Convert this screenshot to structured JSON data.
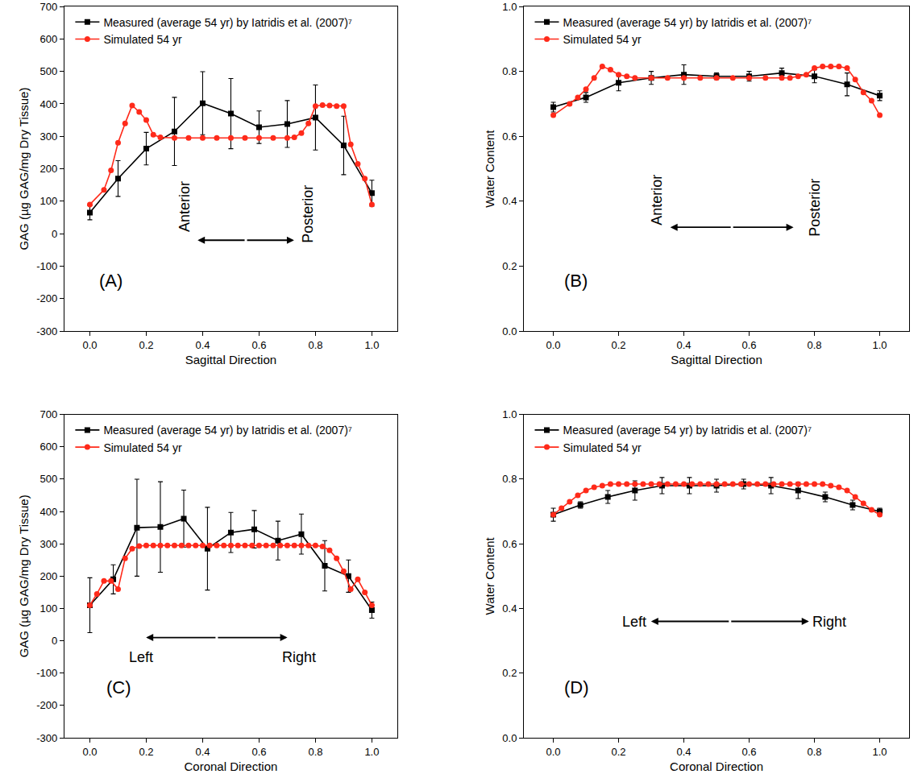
{
  "chart_data": [
    {
      "type": "line",
      "x_label": "Sagittal Direction",
      "y_label": "GAG (µg GAG/mg Dry Tissue)",
      "xlim": [
        -0.09,
        1.09
      ],
      "ylim": [
        -300,
        700
      ],
      "xticks": [
        {
          "value": 0,
          "label": "0.0"
        },
        {
          "value": 0.2,
          "label": "0.2"
        },
        {
          "value": 0.4,
          "label": "0.4"
        },
        {
          "value": 0.6,
          "label": "0.6"
        },
        {
          "value": 0.8,
          "label": "0.8"
        },
        {
          "value": 1,
          "label": "1.0"
        }
      ],
      "yticks": [
        -300,
        -200,
        -100,
        0,
        100,
        200,
        300,
        400,
        500,
        600,
        700
      ],
      "legend": "top left",
      "annotations": [
        "(A)",
        "Anterior",
        "Posterior"
      ],
      "series": [
        {
          "name": "Measured (average 54 yr) by Iatridis et al. (2007)⁷",
          "color": "#000000",
          "marker": "square",
          "line_style": "solid",
          "x": [
            0,
            0.1,
            0.2,
            0.3,
            0.4,
            0.5,
            0.6,
            0.7,
            0.8,
            0.9,
            1.0
          ],
          "values": [
            65,
            170,
            262,
            315,
            402,
            370,
            328,
            338,
            358,
            272,
            125
          ],
          "errors": [
            22,
            55,
            50,
            105,
            97,
            108,
            50,
            72,
            100,
            90,
            40
          ]
        },
        {
          "name": "Simulated 54 yr",
          "color": "#ff2a1a",
          "marker": "circle",
          "line_style": "solid",
          "x": [
            0,
            0.05,
            0.075,
            0.1,
            0.125,
            0.15,
            0.175,
            0.2,
            0.225,
            0.25,
            0.3,
            0.35,
            0.4,
            0.45,
            0.5,
            0.55,
            0.6,
            0.65,
            0.7,
            0.725,
            0.75,
            0.775,
            0.8,
            0.825,
            0.85,
            0.875,
            0.9,
            0.925,
            0.95,
            0.975,
            1.0
          ],
          "values": [
            90,
            135,
            195,
            280,
            340,
            395,
            375,
            350,
            305,
            297,
            295,
            295,
            295,
            295,
            295,
            295,
            295,
            295,
            295,
            297,
            310,
            340,
            393,
            396,
            395,
            393,
            393,
            275,
            215,
            170,
            90
          ]
        }
      ]
    },
    {
      "type": "line",
      "x_label": "Sagittal Direction",
      "y_label": "Water Content",
      "xlim": [
        -0.09,
        1.09
      ],
      "ylim": [
        0,
        1
      ],
      "xticks": [
        {
          "value": 0,
          "label": "0.0"
        },
        {
          "value": 0.2,
          "label": "0.2"
        },
        {
          "value": 0.4,
          "label": "0.4"
        },
        {
          "value": 0.6,
          "label": "0.6"
        },
        {
          "value": 0.8,
          "label": "0.8"
        },
        {
          "value": 1,
          "label": "1.0"
        }
      ],
      "yticks": [
        {
          "value": 0,
          "label": "0.0"
        },
        {
          "value": 0.2,
          "label": "0.2"
        },
        {
          "value": 0.4,
          "label": "0.4"
        },
        {
          "value": 0.6,
          "label": "0.6"
        },
        {
          "value": 0.8,
          "label": "0.8"
        },
        {
          "value": 1,
          "label": "1.0"
        }
      ],
      "legend": "top left",
      "annotations": [
        "(B)",
        "Anterior",
        "Posterior"
      ],
      "series": [
        {
          "name": "Measured (average 54 yr) by Iatridis et al. (2007)⁷",
          "color": "#000000",
          "marker": "square",
          "line_style": "solid",
          "x": [
            0,
            0.1,
            0.2,
            0.3,
            0.4,
            0.5,
            0.6,
            0.7,
            0.8,
            0.9,
            1.0
          ],
          "values": [
            0.69,
            0.72,
            0.765,
            0.78,
            0.79,
            0.785,
            0.785,
            0.795,
            0.785,
            0.76,
            0.725
          ],
          "errors": [
            0.015,
            0.015,
            0.025,
            0.02,
            0.03,
            0.01,
            0.015,
            0.015,
            0.02,
            0.035,
            0.015
          ]
        },
        {
          "name": "Simulated 54 yr",
          "color": "#ff2a1a",
          "marker": "circle",
          "line_style": "solid",
          "x": [
            0,
            0.05,
            0.075,
            0.1,
            0.125,
            0.15,
            0.175,
            0.2,
            0.225,
            0.25,
            0.3,
            0.35,
            0.4,
            0.45,
            0.5,
            0.55,
            0.6,
            0.65,
            0.7,
            0.725,
            0.75,
            0.775,
            0.8,
            0.825,
            0.85,
            0.875,
            0.9,
            0.925,
            0.95,
            0.975,
            1.0
          ],
          "values": [
            0.665,
            0.7,
            0.72,
            0.745,
            0.78,
            0.815,
            0.805,
            0.79,
            0.785,
            0.78,
            0.78,
            0.78,
            0.78,
            0.78,
            0.78,
            0.78,
            0.78,
            0.78,
            0.78,
            0.78,
            0.785,
            0.79,
            0.81,
            0.815,
            0.815,
            0.815,
            0.81,
            0.775,
            0.735,
            0.71,
            0.665
          ]
        }
      ]
    },
    {
      "type": "line",
      "x_label": "Coronal Direction",
      "y_label": "GAG (µg GAG/mg Dry Tissue)",
      "xlim": [
        -0.09,
        1.09
      ],
      "ylim": [
        -300,
        700
      ],
      "xticks": [
        {
          "value": 0,
          "label": "0.0"
        },
        {
          "value": 0.2,
          "label": "0.2"
        },
        {
          "value": 0.4,
          "label": "0.4"
        },
        {
          "value": 0.6,
          "label": "0.6"
        },
        {
          "value": 0.8,
          "label": "0.8"
        },
        {
          "value": 1,
          "label": "1.0"
        }
      ],
      "yticks": [
        -300,
        -200,
        -100,
        0,
        100,
        200,
        300,
        400,
        500,
        600,
        700
      ],
      "legend": "top left",
      "annotations": [
        "(C)",
        "Left",
        "Right"
      ],
      "series": [
        {
          "name": "Measured (average 54 yr) by Iatridis et al. (2007)⁷",
          "color": "#000000",
          "marker": "square",
          "line_style": "solid",
          "x": [
            0,
            0.083,
            0.167,
            0.25,
            0.333,
            0.417,
            0.5,
            0.583,
            0.667,
            0.75,
            0.833,
            0.917,
            1.0
          ],
          "values": [
            110,
            190,
            350,
            352,
            378,
            285,
            335,
            345,
            310,
            330,
            232,
            200,
            95
          ],
          "errors": [
            85,
            45,
            150,
            140,
            88,
            128,
            62,
            58,
            60,
            62,
            78,
            50,
            25
          ]
        },
        {
          "name": "Simulated 54 yr",
          "color": "#ff2a1a",
          "marker": "circle",
          "line_style": "solid",
          "x": [
            0,
            0.025,
            0.05,
            0.075,
            0.1,
            0.125,
            0.15,
            0.175,
            0.2,
            0.225,
            0.25,
            0.275,
            0.3,
            0.325,
            0.35,
            0.375,
            0.4,
            0.425,
            0.45,
            0.475,
            0.5,
            0.525,
            0.55,
            0.575,
            0.6,
            0.625,
            0.65,
            0.675,
            0.7,
            0.725,
            0.75,
            0.775,
            0.8,
            0.825,
            0.85,
            0.875,
            0.9,
            0.925,
            0.95,
            0.975,
            1.0
          ],
          "values": [
            110,
            145,
            185,
            185,
            160,
            255,
            285,
            293,
            295,
            295,
            295,
            295,
            295,
            295,
            295,
            295,
            295,
            295,
            295,
            295,
            295,
            295,
            295,
            295,
            295,
            295,
            295,
            295,
            295,
            295,
            295,
            295,
            295,
            292,
            280,
            255,
            215,
            160,
            190,
            150,
            110
          ]
        }
      ]
    },
    {
      "type": "line",
      "x_label": "Coronal Direction",
      "y_label": "Water Content",
      "xlim": [
        -0.09,
        1.09
      ],
      "ylim": [
        0,
        1
      ],
      "xticks": [
        {
          "value": 0,
          "label": "0.0"
        },
        {
          "value": 0.2,
          "label": "0.2"
        },
        {
          "value": 0.4,
          "label": "0.4"
        },
        {
          "value": 0.6,
          "label": "0.6"
        },
        {
          "value": 0.8,
          "label": "0.8"
        },
        {
          "value": 1,
          "label": "1.0"
        }
      ],
      "yticks": [
        {
          "value": 0,
          "label": "0.0"
        },
        {
          "value": 0.2,
          "label": "0.2"
        },
        {
          "value": 0.4,
          "label": "0.4"
        },
        {
          "value": 0.6,
          "label": "0.6"
        },
        {
          "value": 0.8,
          "label": "0.8"
        },
        {
          "value": 1,
          "label": "1.0"
        }
      ],
      "legend": "top left",
      "annotations": [
        "(D)",
        "Left",
        "Right"
      ],
      "series": [
        {
          "name": "Measured (average 54 yr) by Iatridis et al. (2007)⁷",
          "color": "#000000",
          "marker": "square",
          "line_style": "solid",
          "x": [
            0,
            0.083,
            0.167,
            0.25,
            0.333,
            0.417,
            0.5,
            0.583,
            0.667,
            0.75,
            0.833,
            0.917,
            1.0
          ],
          "values": [
            0.69,
            0.72,
            0.745,
            0.765,
            0.78,
            0.78,
            0.78,
            0.785,
            0.78,
            0.765,
            0.745,
            0.72,
            0.7
          ],
          "errors": [
            0.02,
            0.01,
            0.02,
            0.03,
            0.025,
            0.025,
            0.02,
            0.015,
            0.025,
            0.025,
            0.015,
            0.015,
            0.01
          ]
        },
        {
          "name": "Simulated 54 yr",
          "color": "#ff2a1a",
          "marker": "circle",
          "line_style": "solid",
          "x": [
            0,
            0.025,
            0.05,
            0.075,
            0.1,
            0.125,
            0.15,
            0.175,
            0.2,
            0.225,
            0.25,
            0.275,
            0.3,
            0.325,
            0.35,
            0.375,
            0.4,
            0.425,
            0.45,
            0.475,
            0.5,
            0.525,
            0.55,
            0.575,
            0.6,
            0.625,
            0.65,
            0.675,
            0.7,
            0.725,
            0.75,
            0.775,
            0.8,
            0.825,
            0.85,
            0.875,
            0.9,
            0.925,
            0.95,
            0.975,
            1.0
          ],
          "values": [
            0.69,
            0.71,
            0.73,
            0.75,
            0.765,
            0.775,
            0.78,
            0.785,
            0.785,
            0.785,
            0.785,
            0.785,
            0.785,
            0.785,
            0.785,
            0.785,
            0.785,
            0.785,
            0.785,
            0.785,
            0.785,
            0.785,
            0.785,
            0.785,
            0.785,
            0.785,
            0.785,
            0.785,
            0.785,
            0.785,
            0.785,
            0.785,
            0.785,
            0.785,
            0.78,
            0.775,
            0.765,
            0.745,
            0.725,
            0.705,
            0.69
          ]
        }
      ]
    }
  ]
}
